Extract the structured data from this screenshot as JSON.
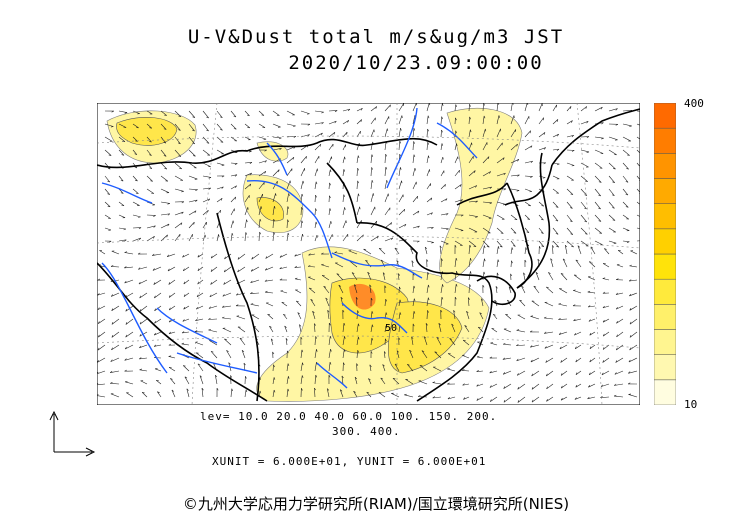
{
  "header": {
    "title": "U-V&Dust total m/s&ug/m3 JST",
    "datetime": "2020/10/23.09:00:00"
  },
  "colorbar": {
    "max_label": "400",
    "min_label": "10",
    "colors": [
      "#fffde0",
      "#fff8b0",
      "#fff590",
      "#fff06a",
      "#ffea3c",
      "#ffe30a",
      "#ffd000",
      "#ffbe00",
      "#ffaa00",
      "#ff9400",
      "#ff7d00",
      "#ff6a00"
    ]
  },
  "legend": {
    "levels_line1": "lev= 10.0 20.0 40.0 60.0 100. 150. 200.",
    "levels_line2": "300. 400.",
    "units": "XUNIT = 6.000E+01, YUNIT = 6.000E+01"
  },
  "map": {
    "contour_label": "50",
    "dust_color": "#fff6a0",
    "dust_strong_color": "#ffe64a",
    "dust_peak_color": "#ff8c28",
    "river_color": "#1e5cff",
    "coast_color": "#000000"
  },
  "footer": {
    "credit": "©九州大学応用力学研究所(RIAM)/国立環境研究所(NIES)"
  }
}
